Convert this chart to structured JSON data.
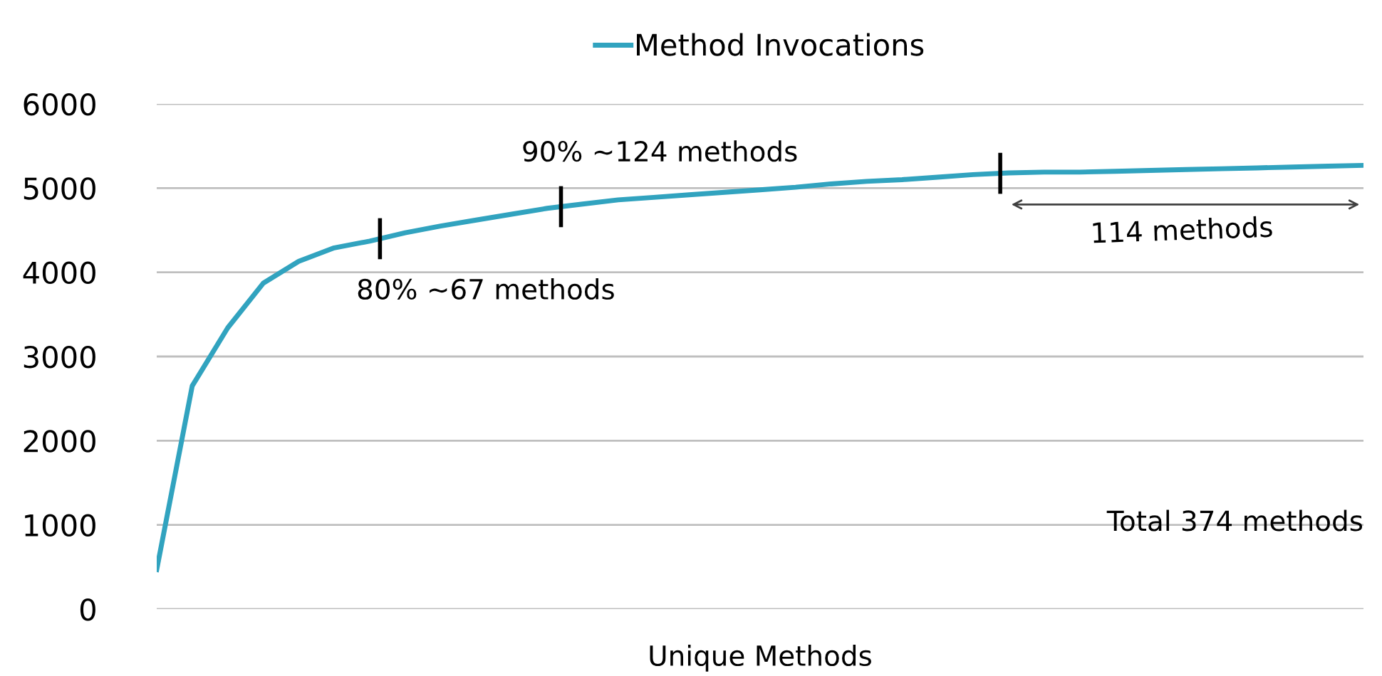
{
  "chart_data": {
    "type": "line",
    "xlabel": "Unique Methods",
    "categories": [
      null,
      null,
      null,
      null,
      null,
      null,
      null,
      null,
      null,
      null,
      null,
      null,
      null,
      null,
      null,
      null,
      null,
      null,
      null,
      null,
      null,
      null,
      null,
      null,
      null,
      null,
      null,
      null,
      null,
      null,
      null,
      null,
      null,
      null,
      null
    ],
    "series": [
      {
        "name": "Method Invocations",
        "color": "#31a3bf",
        "values": [
          470,
          2650,
          3340,
          3870,
          4130,
          4290,
          4370,
          4470,
          4550,
          4620,
          4690,
          4760,
          4810,
          4860,
          4890,
          4920,
          4950,
          4980,
          5010,
          5050,
          5080,
          5100,
          5130,
          5160,
          5180,
          5190,
          5190,
          5200,
          5210,
          5220,
          5230,
          5240,
          5250,
          5260,
          5270
        ]
      }
    ],
    "ylim": [
      0,
      6000
    ],
    "yticks": [
      0,
      1000,
      2000,
      3000,
      4000,
      5000,
      6000
    ],
    "tick_labels": "y",
    "grid": "y",
    "legend": "top",
    "marker": "none",
    "line_style": "solid",
    "annotations": [
      "80% ~67 methods",
      "90% ~124 methods",
      "114 methods",
      "Total 374 methods"
    ]
  }
}
